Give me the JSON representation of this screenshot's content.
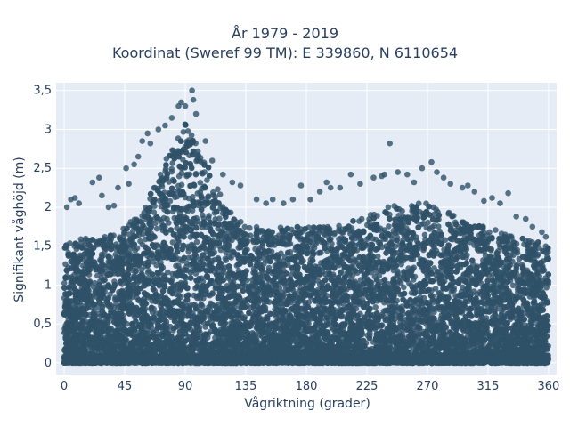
{
  "chart_data": {
    "type": "scatter",
    "title_lines": [
      "År 1979 - 2019",
      "Koordinat (Sweref 99 TM): E 339860, N 6110654"
    ],
    "xlabel": "Vågriktning (grader)",
    "ylabel": "Signifikant våghöjd (m)",
    "xlim": [
      -6,
      366
    ],
    "ylim": [
      -0.15,
      3.6
    ],
    "xticks": [
      0,
      45,
      90,
      135,
      180,
      225,
      270,
      315,
      360
    ],
    "xtick_labels": [
      "0",
      "45",
      "90",
      "135",
      "180",
      "225",
      "270",
      "315",
      "360"
    ],
    "yticks": [
      0,
      0.5,
      1,
      1.5,
      2,
      2.5,
      3,
      3.5
    ],
    "ytick_labels": [
      "0",
      "0,5",
      "1",
      "1,5",
      "2",
      "2,5",
      "3",
      "3,5"
    ],
    "grid": true,
    "colors": {
      "plot_bg": "#e5ecf6",
      "grid": "#ffffff",
      "marker": "#2f5168",
      "text": "#2a3f5f"
    },
    "envelope": {
      "direction": [
        0,
        15,
        30,
        45,
        60,
        75,
        90,
        105,
        120,
        135,
        150,
        165,
        180,
        195,
        210,
        225,
        240,
        255,
        270,
        285,
        300,
        315,
        330,
        345,
        360
      ],
      "max_height": [
        1.55,
        1.6,
        1.65,
        1.75,
        2.0,
        2.6,
        3.1,
        2.6,
        2.0,
        1.75,
        1.75,
        1.75,
        1.75,
        1.75,
        1.8,
        1.9,
        2.0,
        2.05,
        2.05,
        1.95,
        1.8,
        1.75,
        1.65,
        1.6,
        1.5
      ]
    },
    "outliers": [
      [
        2,
        2.0
      ],
      [
        5,
        2.1
      ],
      [
        8,
        2.12
      ],
      [
        11,
        2.05
      ],
      [
        21,
        2.32
      ],
      [
        26,
        2.38
      ],
      [
        28,
        2.15
      ],
      [
        33,
        2.0
      ],
      [
        37,
        2.02
      ],
      [
        40,
        2.25
      ],
      [
        46,
        2.5
      ],
      [
        48,
        2.3
      ],
      [
        52,
        2.55
      ],
      [
        55,
        2.65
      ],
      [
        58,
        2.85
      ],
      [
        62,
        2.95
      ],
      [
        64,
        2.82
      ],
      [
        70,
        3.0
      ],
      [
        75,
        3.05
      ],
      [
        80,
        3.15
      ],
      [
        85,
        3.3
      ],
      [
        87,
        3.35
      ],
      [
        90,
        3.3
      ],
      [
        95,
        3.5
      ],
      [
        96,
        3.38
      ],
      [
        98,
        3.2
      ],
      [
        105,
        2.85
      ],
      [
        110,
        2.6
      ],
      [
        118,
        2.42
      ],
      [
        125,
        2.32
      ],
      [
        131,
        2.28
      ],
      [
        143,
        2.1
      ],
      [
        150,
        2.05
      ],
      [
        155,
        2.1
      ],
      [
        163,
        2.05
      ],
      [
        170,
        2.1
      ],
      [
        176,
        2.28
      ],
      [
        183,
        2.1
      ],
      [
        190,
        2.2
      ],
      [
        195,
        2.32
      ],
      [
        198,
        2.25
      ],
      [
        205,
        2.25
      ],
      [
        213,
        2.42
      ],
      [
        220,
        2.3
      ],
      [
        230,
        2.38
      ],
      [
        236,
        2.4
      ],
      [
        238,
        2.42
      ],
      [
        242,
        2.82
      ],
      [
        248,
        2.45
      ],
      [
        255,
        2.42
      ],
      [
        260,
        2.32
      ],
      [
        266,
        2.5
      ],
      [
        273,
        2.58
      ],
      [
        277,
        2.45
      ],
      [
        282,
        2.38
      ],
      [
        287,
        2.3
      ],
      [
        296,
        2.25
      ],
      [
        300,
        2.28
      ],
      [
        305,
        2.2
      ],
      [
        312,
        2.08
      ],
      [
        318,
        2.12
      ],
      [
        324,
        2.05
      ],
      [
        330,
        2.18
      ],
      [
        336,
        1.88
      ],
      [
        343,
        1.85
      ],
      [
        348,
        1.75
      ],
      [
        355,
        1.68
      ],
      [
        358,
        1.62
      ]
    ]
  }
}
